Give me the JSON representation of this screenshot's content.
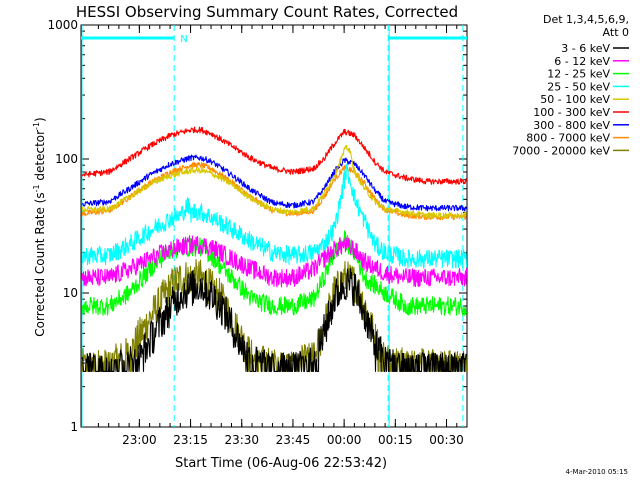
{
  "chart_data": {
    "type": "line",
    "title": "HESSI Observing Summary Count Rates, Corrected",
    "ylabel": "Corrected Count Rate (s",
    "ylabel_sup1": "-1",
    "ylabel_mid": " detector",
    "ylabel_sup2": "-1",
    "ylabel_end": ")",
    "xlabel": "Start Time (06-Aug-06 22:53:42)",
    "y_scale": "log",
    "ylim": [
      1,
      1000
    ],
    "xlim_minutes": [
      -6.7,
      31.0
    ],
    "y_ticks": [
      {
        "value": 1,
        "label": "1"
      },
      {
        "value": 10,
        "label": "10"
      },
      {
        "value": 100,
        "label": "100"
      },
      {
        "value": 1000,
        "label": "1000"
      }
    ],
    "x_ticks": [
      {
        "minutes": -1,
        "label": "23:00"
      },
      {
        "minutes": 4,
        "label": "23:15"
      },
      {
        "minutes": 9,
        "label": "23:30"
      },
      {
        "minutes": 14,
        "label": "23:45"
      },
      {
        "minutes": 19,
        "label": "00:00"
      },
      {
        "minutes": 24,
        "label": "00:15"
      },
      {
        "minutes": 29,
        "label": "00:30"
      }
    ],
    "legend_header": [
      "Det 1,3,4,5,6,9,",
      "Att 0"
    ],
    "legend_placement": "right",
    "series": [
      {
        "name": "3 - 6 keV",
        "color": "#000000",
        "x": [
          -6.7,
          -4,
          -1,
          1,
          3,
          5,
          7,
          9,
          10,
          12,
          14,
          16,
          17,
          18,
          19,
          20,
          21,
          22,
          23,
          25,
          27,
          29,
          31
        ],
        "y": [
          2.6,
          2.6,
          3.2,
          6,
          10,
          11.5,
          8,
          4,
          3,
          2.6,
          2.6,
          3,
          5,
          9,
          12,
          11,
          7,
          4,
          3,
          2.6,
          2.6,
          2.6,
          2.6
        ]
      },
      {
        "name": "6 - 12 keV",
        "color": "#ff00ff",
        "x": [
          -6.7,
          -4,
          -2,
          0,
          2,
          4,
          5,
          6,
          8,
          10,
          12,
          14,
          16,
          17,
          18,
          19,
          20,
          21,
          23,
          25,
          27,
          31
        ],
        "y": [
          13,
          13,
          15,
          18,
          21,
          23,
          23,
          22,
          18,
          15,
          13,
          13,
          15,
          18,
          21,
          23,
          21,
          17,
          14,
          13,
          13,
          13
        ]
      },
      {
        "name": "12 - 25 keV",
        "color": "#00ff00",
        "x": [
          -6.7,
          -4,
          -2,
          0,
          2,
          4,
          5,
          6,
          8,
          10,
          12,
          14,
          16,
          17,
          18,
          19,
          20,
          21,
          23,
          25,
          27,
          31
        ],
        "y": [
          8,
          8,
          10,
          15,
          21,
          22,
          22,
          19,
          13,
          9,
          8,
          8,
          9,
          13,
          20,
          25,
          20,
          13,
          10,
          8,
          8,
          8
        ]
      },
      {
        "name": "25 - 50 keV",
        "color": "#00ffff",
        "x": [
          -6.7,
          -4,
          -2,
          0,
          2,
          3,
          3.7,
          4,
          4.5,
          5,
          6,
          8,
          10,
          12,
          14,
          16,
          17,
          18,
          18.5,
          18.9,
          19.2,
          19.6,
          20,
          21,
          22,
          23,
          25,
          27,
          31
        ],
        "y": [
          19,
          19,
          23,
          29,
          36,
          38,
          45,
          39,
          41,
          40,
          37,
          30,
          24,
          20,
          19,
          20,
          23,
          30,
          45,
          65,
          82,
          70,
          50,
          34,
          23,
          20,
          18,
          18,
          18
        ]
      },
      {
        "name": "50 - 100 keV",
        "color": "#d8c800",
        "x": [
          -6.7,
          -4,
          -2,
          0,
          2,
          4,
          5,
          6,
          8,
          10,
          12,
          14,
          16,
          17,
          18,
          18.8,
          19.2,
          19.6,
          20,
          21,
          22,
          23,
          25,
          27,
          31
        ],
        "y": [
          42,
          42,
          52,
          65,
          75,
          82,
          82,
          78,
          65,
          50,
          42,
          40,
          43,
          55,
          75,
          105,
          125,
          110,
          80,
          60,
          48,
          42,
          40,
          38,
          38
        ]
      },
      {
        "name": "100 - 300 keV",
        "color": "#ff0000",
        "x": [
          -6.7,
          -4,
          -2,
          0,
          2,
          4,
          5,
          6,
          8,
          10,
          12,
          14,
          16,
          17,
          18,
          19,
          20,
          21,
          22,
          23,
          25,
          27,
          31
        ],
        "y": [
          76,
          80,
          100,
          125,
          150,
          165,
          165,
          155,
          125,
          100,
          85,
          80,
          85,
          100,
          130,
          160,
          150,
          120,
          95,
          80,
          72,
          68,
          68
        ]
      },
      {
        "name": "300 - 800 keV",
        "color": "#0000ff",
        "x": [
          -6.7,
          -4,
          -2,
          0,
          2,
          4,
          5,
          6,
          8,
          10,
          12,
          14,
          16,
          17,
          18,
          19,
          20,
          21,
          22,
          23,
          25,
          27,
          31
        ],
        "y": [
          46,
          48,
          60,
          76,
          92,
          102,
          102,
          96,
          76,
          58,
          47,
          45,
          48,
          60,
          80,
          98,
          92,
          75,
          58,
          48,
          44,
          43,
          43
        ]
      },
      {
        "name": "800 - 7000 keV",
        "color": "#ff8c00",
        "x": [
          -6.7,
          -4,
          -2,
          0,
          2,
          4,
          5,
          6,
          8,
          10,
          12,
          14,
          16,
          17,
          18,
          19,
          20,
          21,
          22,
          23,
          25,
          27,
          31
        ],
        "y": [
          39,
          41,
          52,
          66,
          80,
          90,
          90,
          85,
          67,
          51,
          41,
          39,
          41,
          52,
          70,
          86,
          80,
          65,
          50,
          42,
          38,
          37,
          37
        ]
      },
      {
        "name": "7000 - 20000 keV",
        "color": "#808000",
        "x": [
          -6.7,
          -4,
          -2,
          0,
          2,
          3,
          5,
          7,
          9,
          10,
          12,
          14,
          16,
          17,
          18,
          19,
          20,
          21,
          22,
          23,
          25,
          27,
          29,
          31
        ],
        "y": [
          2.8,
          2.8,
          3.5,
          6.5,
          11,
          13,
          13,
          9,
          4.5,
          3.2,
          2.8,
          2.8,
          3.2,
          5.5,
          10,
          13,
          12,
          8,
          4.5,
          3.2,
          2.8,
          2.8,
          2.8,
          2.8
        ]
      }
    ],
    "attenuator_lines": {
      "color": "#00ffff",
      "segments": [
        [
          -6.7,
          2.4
        ],
        [
          23.3,
          31.0
        ]
      ],
      "dashed_markers": [
        2.4,
        23.3,
        30.6
      ],
      "solid_markers": [
        -6.7,
        23.3
      ],
      "label": "N",
      "label_at": 2.8,
      "level": 800
    },
    "footer_timestamp": "4-Mar-2010 05:15"
  }
}
